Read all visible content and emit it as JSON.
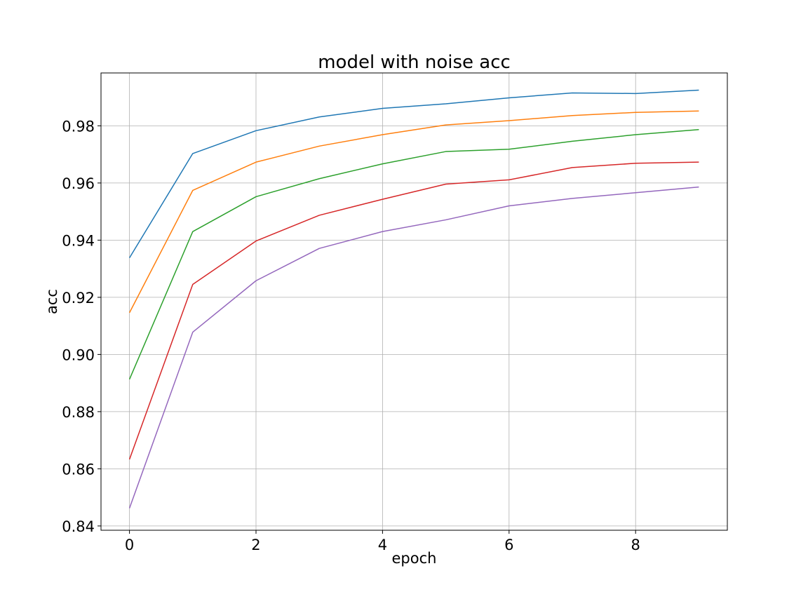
{
  "chart_data": {
    "type": "line",
    "title": "model with noise acc",
    "xlabel": "epoch",
    "ylabel": "acc",
    "xlim": [
      -0.45,
      9.45
    ],
    "ylim": [
      0.8385,
      0.9985
    ],
    "grid": true,
    "legend": false,
    "x": [
      0,
      1,
      2,
      3,
      4,
      5,
      6,
      7,
      8,
      9
    ],
    "xticks": [
      0,
      2,
      4,
      6,
      8
    ],
    "xtick_labels": [
      "0",
      "2",
      "4",
      "6",
      "8"
    ],
    "yticks": [
      0.84,
      0.86,
      0.88,
      0.9,
      0.92,
      0.94,
      0.96,
      0.98
    ],
    "ytick_labels": [
      "0.84",
      "0.86",
      "0.88",
      "0.90",
      "0.92",
      "0.94",
      "0.96",
      "0.98"
    ],
    "series": [
      {
        "color": "#1f77b4",
        "values": [
          0.9338,
          0.9703,
          0.9783,
          0.9831,
          0.9861,
          0.9877,
          0.9898,
          0.9915,
          0.9913,
          0.9925
        ]
      },
      {
        "color": "#ff7f0e",
        "values": [
          0.9146,
          0.9574,
          0.9673,
          0.9729,
          0.9769,
          0.9803,
          0.9818,
          0.9836,
          0.9847,
          0.9852
        ]
      },
      {
        "color": "#2ca02c",
        "values": [
          0.8913,
          0.943,
          0.9552,
          0.9615,
          0.9667,
          0.971,
          0.9718,
          0.9746,
          0.9769,
          0.9787
        ]
      },
      {
        "color": "#d62728",
        "values": [
          0.8633,
          0.9245,
          0.9397,
          0.9487,
          0.9543,
          0.9596,
          0.9611,
          0.9654,
          0.9669,
          0.9673
        ]
      },
      {
        "color": "#9467bd",
        "values": [
          0.8462,
          0.9078,
          0.9258,
          0.9371,
          0.943,
          0.9471,
          0.952,
          0.9546,
          0.9566,
          0.9586
        ]
      }
    ]
  }
}
